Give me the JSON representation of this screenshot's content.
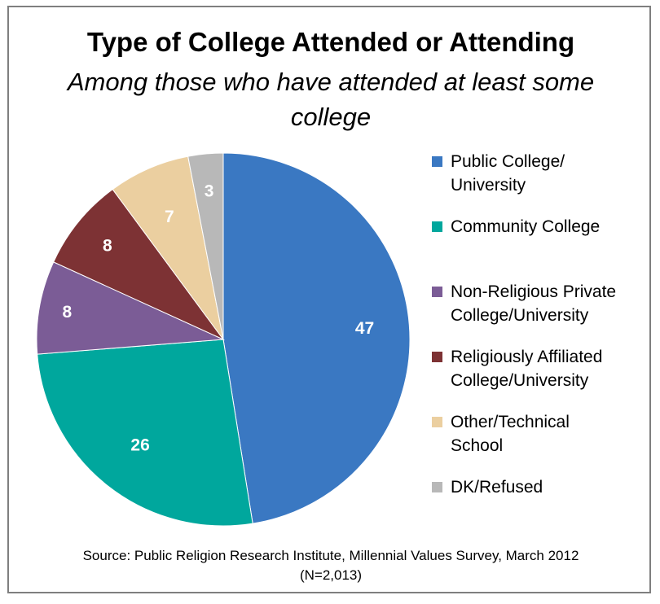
{
  "chart_data": {
    "type": "pie",
    "title": "Type of College Attended or Attending",
    "subtitle": "Among those who have attended at least some college",
    "slices": [
      {
        "label": "Public College/ University",
        "value": 47,
        "color": "#3a78c2"
      },
      {
        "label": "Community College",
        "value": 26,
        "color": "#00a79d"
      },
      {
        "label": "Non-Religious Private College/University",
        "value": 8,
        "color": "#7b5c96"
      },
      {
        "label": "Religiously Affiliated College/University",
        "value": 8,
        "color": "#7d3234"
      },
      {
        "label": "Other/Technical School",
        "value": 7,
        "color": "#ebcfa0"
      },
      {
        "label": "DK/Refused",
        "value": 3,
        "color": "#b8b8b8"
      }
    ],
    "legend_position": "right",
    "legend_lines": [
      [
        "Public College/",
        "University"
      ],
      [
        "Community College"
      ],
      [
        "Non-Religious Private",
        "College/University"
      ],
      [
        "Religiously Affiliated",
        "College/University"
      ],
      [
        "Other/Technical",
        "School"
      ],
      [
        "DK/Refused"
      ]
    ]
  },
  "source": {
    "line1": "Source: Public Religion Research Institute, Millennial Values Survey, March 2012",
    "line2": "(N=2,013)"
  }
}
